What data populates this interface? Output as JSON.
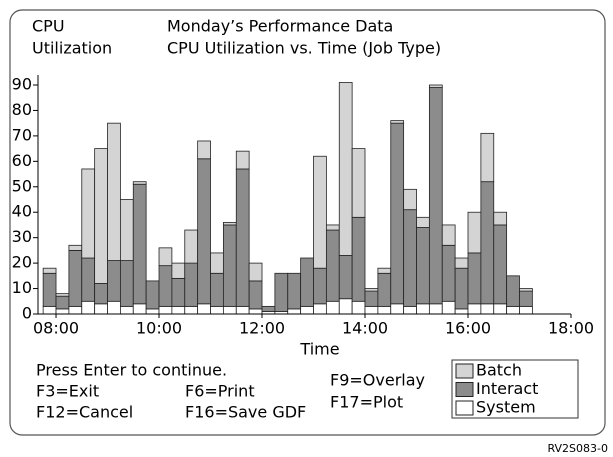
{
  "chart_data": {
    "type": "stacked_bar",
    "y_label": [
      "CPU",
      "Utilization"
    ],
    "title": "Monday’s Performance Data",
    "subtitle": "CPU Utilization vs. Time (Job Type)",
    "x_label": "Time",
    "x": [
      7.875,
      8.125,
      8.375,
      8.625,
      8.875,
      9.125,
      9.375,
      9.625,
      9.875,
      10.125,
      10.375,
      10.625,
      10.875,
      11.125,
      11.375,
      11.625,
      11.875,
      12.125,
      12.375,
      12.625,
      12.875,
      13.125,
      13.375,
      13.625,
      13.875,
      14.125,
      14.375,
      14.625,
      14.875,
      15.125,
      15.375,
      15.625,
      15.875,
      16.125,
      16.375,
      16.625,
      16.875,
      17.125
    ],
    "series": [
      {
        "name": "System",
        "color": "#ffffff",
        "values": [
          3,
          2,
          3,
          5,
          4,
          5,
          3,
          4,
          2,
          3,
          3,
          3,
          4,
          3,
          3,
          3,
          2,
          1,
          1,
          2,
          3,
          4,
          5,
          6,
          5,
          3,
          3,
          4,
          3,
          4,
          4,
          5,
          2,
          4,
          4,
          4,
          3,
          3
        ]
      },
      {
        "name": "Interact",
        "color": "#8c8c8c",
        "values": [
          13,
          5,
          22,
          17,
          8,
          16,
          18,
          47,
          11,
          16,
          11,
          17,
          57,
          13,
          32,
          54,
          11,
          2,
          15,
          14,
          19,
          14,
          28,
          17,
          33,
          6,
          13,
          71,
          38,
          30,
          85,
          22,
          16,
          20,
          48,
          31,
          12,
          6
        ]
      },
      {
        "name": "Batch",
        "color": "#d4d4d4",
        "values": [
          2,
          1,
          2,
          35,
          53,
          54,
          24,
          1,
          0,
          7,
          6,
          13,
          7,
          8,
          1,
          7,
          7,
          0,
          0,
          0,
          0,
          44,
          2,
          68,
          27,
          1,
          2,
          1,
          8,
          4,
          1,
          8,
          4,
          16,
          19,
          5,
          0,
          1
        ]
      }
    ],
    "xlim": [
      7.65,
      18
    ],
    "xticks": [
      {
        "value": 8,
        "label": "08:00"
      },
      {
        "value": 10,
        "label": "10:00"
      },
      {
        "value": 12,
        "label": "12:00"
      },
      {
        "value": 14,
        "label": "14:00"
      },
      {
        "value": 16,
        "label": "16:00"
      },
      {
        "value": 18,
        "label": "18:00"
      }
    ],
    "bar_width": 0.25,
    "ylim": [
      0,
      90
    ],
    "yticks": [
      0,
      10,
      20,
      30,
      40,
      50,
      60,
      70,
      80,
      90
    ]
  },
  "footer": {
    "prompt": "Press Enter to continue.",
    "keys": [
      "F3=Exit",
      "F6=Print",
      "F9=Overlay",
      "F12=Cancel",
      "F16=Save GDF",
      "F17=Plot"
    ]
  },
  "figure_id": "RV2S083-0"
}
